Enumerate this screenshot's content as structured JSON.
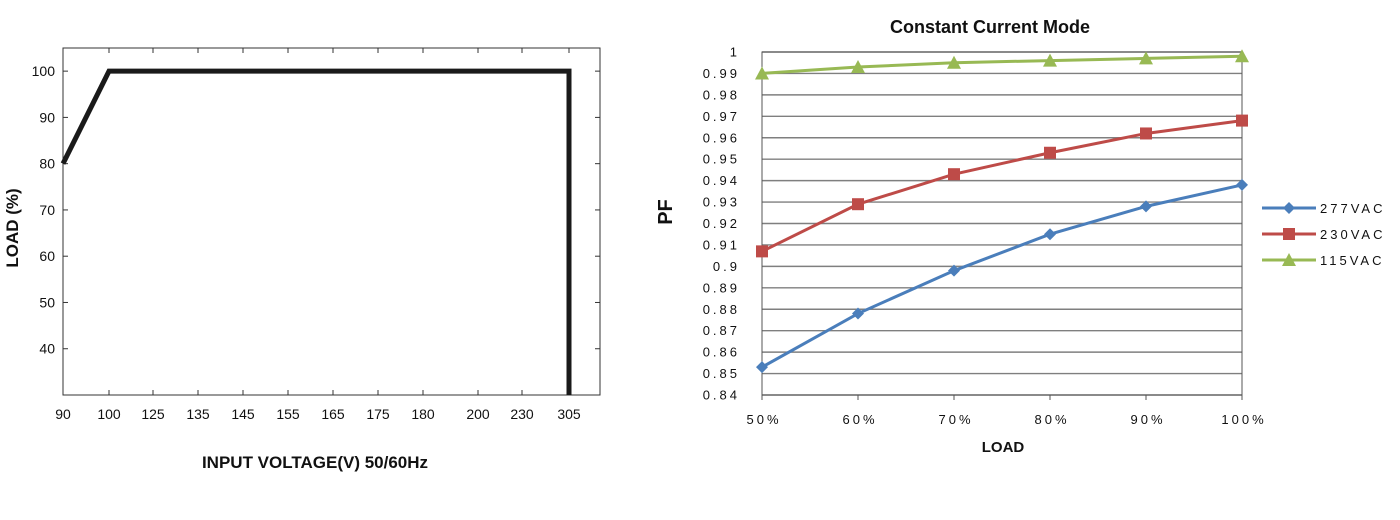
{
  "chart_data": [
    {
      "type": "line",
      "title": "",
      "xlabel": "INPUT VOLTAGE(V) 50/60Hz",
      "ylabel": "LOAD (%)",
      "categories": [
        "90",
        "100",
        "125",
        "135",
        "145",
        "155",
        "165",
        "175",
        "180",
        "200",
        "230",
        "305"
      ],
      "y_ticks": [
        "100",
        "90",
        "80",
        "70",
        "60",
        "50",
        "40"
      ],
      "ylim": [
        30,
        105
      ],
      "series": [
        {
          "color": "#1a1a1a",
          "points": [
            {
              "x": "90",
              "y": 80
            },
            {
              "x": "100",
              "y": 100
            },
            {
              "x": "305",
              "y": 100
            },
            {
              "x": "305",
              "y": 30
            }
          ]
        }
      ],
      "grid": false
    },
    {
      "type": "line",
      "title": "Constant Current Mode",
      "xlabel": "LOAD",
      "ylabel": "PF",
      "categories": [
        "50%",
        "60%",
        "70%",
        "80%",
        "90%",
        "100%"
      ],
      "y_ticks": [
        "1",
        "0.99",
        "0.98",
        "0.97",
        "0.96",
        "0.95",
        "0.94",
        "0.93",
        "0.92",
        "0.91",
        "0.9",
        "0.89",
        "0.88",
        "0.87",
        "0.86",
        "0.85",
        "0.84"
      ],
      "ylim": [
        0.84,
        1.0
      ],
      "grid": true,
      "legend_position": "right",
      "series": [
        {
          "name": "277VAC",
          "color": "#4a7ebb",
          "marker": "diamond",
          "values": [
            0.853,
            0.878,
            0.898,
            0.915,
            0.928,
            0.938
          ]
        },
        {
          "name": "230VAC",
          "color": "#be4b48",
          "marker": "square",
          "values": [
            0.907,
            0.929,
            0.943,
            0.953,
            0.962,
            0.968
          ]
        },
        {
          "name": "115VAC",
          "color": "#98b954",
          "marker": "triangle",
          "values": [
            0.99,
            0.993,
            0.995,
            0.996,
            0.997,
            0.998
          ]
        }
      ]
    }
  ]
}
